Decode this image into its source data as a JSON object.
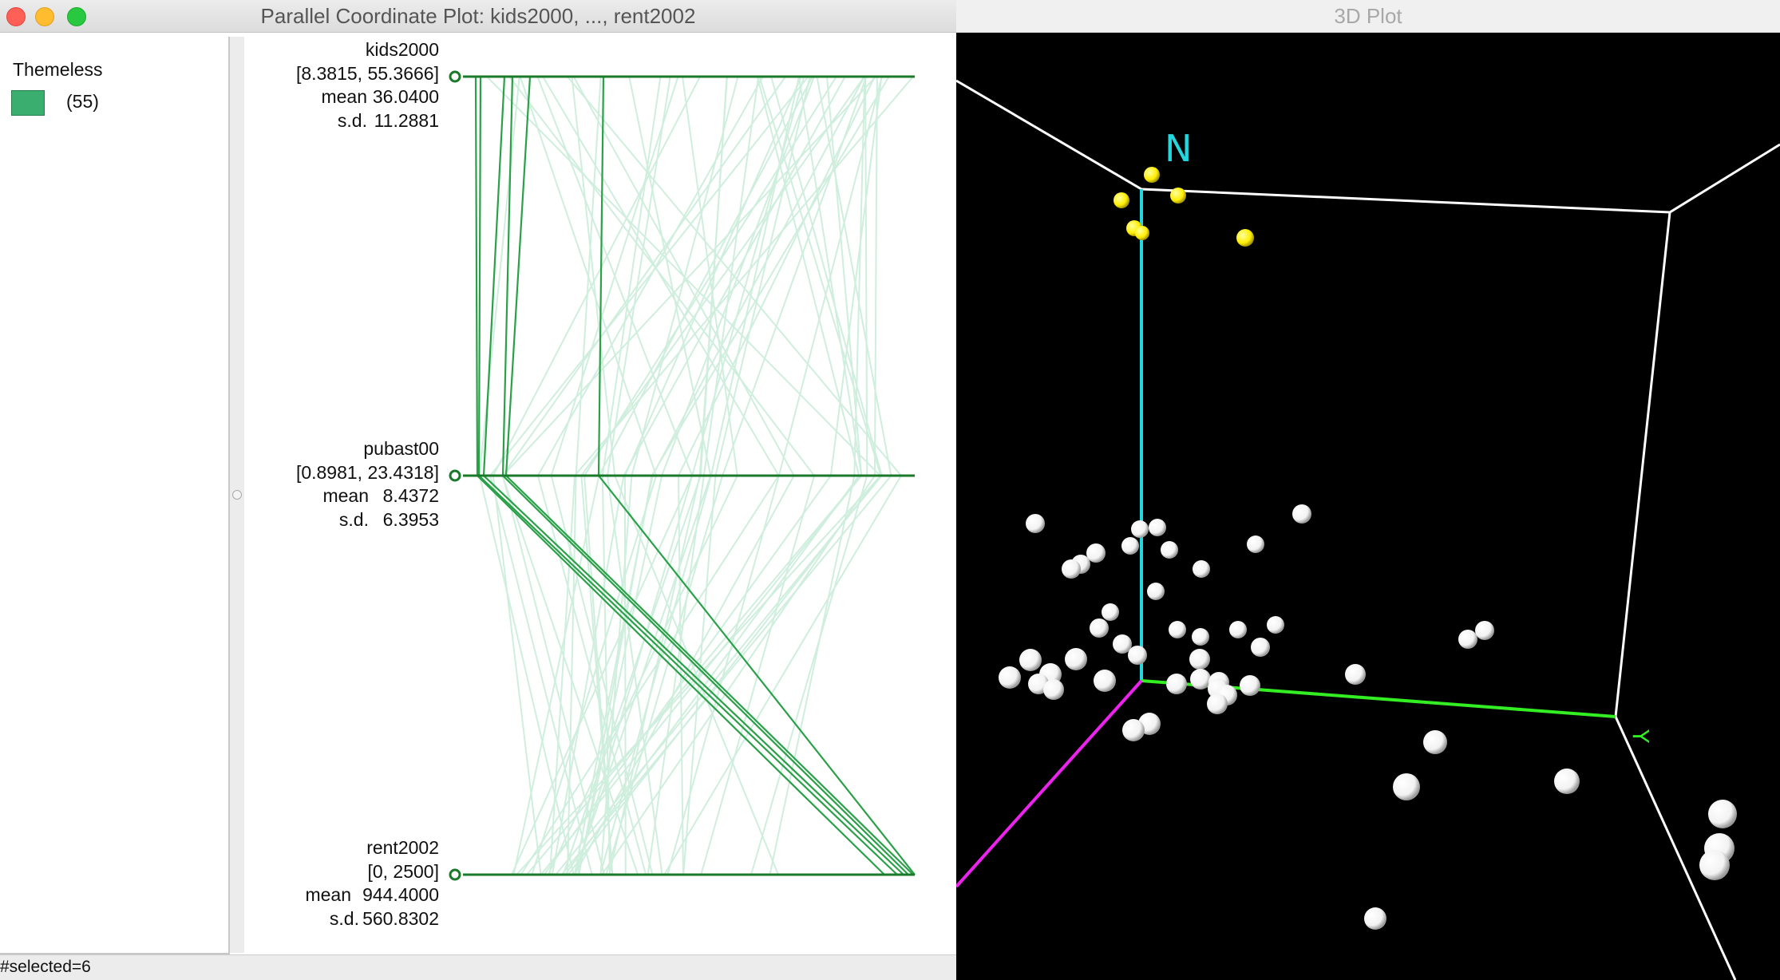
{
  "pcp_window": {
    "title": "Parallel Coordinate Plot: kids2000, ..., rent2002",
    "legend": {
      "category": "Themeless",
      "count": "(55)",
      "swatch_color": "#3aae6e"
    },
    "axes": [
      {
        "name": "kids2000",
        "range": "[8.3815, 55.3666]",
        "mean_label": "mean",
        "mean": "36.0400",
        "sd_label": "s.d.",
        "sd": "11.2881"
      },
      {
        "name": "pubast00",
        "range": "[0.8981, 23.4318]",
        "mean_label": "mean",
        "mean": "8.4372",
        "sd_label": "s.d.",
        "sd": "6.3953"
      },
      {
        "name": "rent2002",
        "range": "[0, 2500]",
        "mean_label": "mean",
        "mean": "944.4000",
        "sd_label": "s.d.",
        "sd": "560.8302"
      }
    ],
    "colors": {
      "axis": "#1a7a2a",
      "selected_line": "#2aa048",
      "unselected_line": "#cfeedd"
    },
    "status": "#selected=6"
  },
  "plot3d_window": {
    "title": "3D Plot",
    "axis_labels": {
      "n": "N",
      "y": "Y"
    },
    "colors": {
      "background": "#000000",
      "box": "#ffffff",
      "n_axis": "#22d8e0",
      "y_axis": "#33ee22",
      "x_axis": "#ee22ee",
      "selected_point": "#ffee00",
      "point": "#f2f2f2"
    }
  }
}
